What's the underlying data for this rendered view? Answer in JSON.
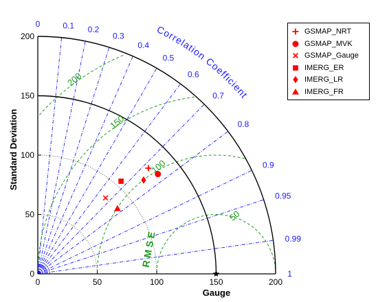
{
  "chart_data": {
    "type": "scatter",
    "subtype": "taylor-diagram",
    "xlabel": "Gauge",
    "ylabel": "Standard Deviation",
    "corr_title": "Correlation Coefficient",
    "rms_title": "R M S E",
    "std_range": [
      0,
      200
    ],
    "std_ticks": [
      0,
      50,
      100,
      150,
      200
    ],
    "corr_ticks": [
      "0",
      "0.1",
      "0.2",
      "0.3",
      "0.4",
      "0.5",
      "0.6",
      "0.7",
      "0.8",
      "0.9",
      "0.95",
      "0.99",
      "1"
    ],
    "corr_values": [
      0,
      0.1,
      0.2,
      0.3,
      0.4,
      0.5,
      0.6,
      0.7,
      0.8,
      0.9,
      0.95,
      0.99,
      1
    ],
    "rms_contours": [
      "50",
      "100",
      "150",
      "200"
    ],
    "rms_values": [
      50,
      100,
      150,
      200
    ],
    "reference": {
      "name": "Gauge",
      "std": 150,
      "corr": 1
    },
    "std_arcs": [
      100,
      150,
      200
    ],
    "series": [
      {
        "name": "GSMAP_NRT",
        "marker": "plus",
        "x": 93,
        "y": 89
      },
      {
        "name": "GSMAP_MVK",
        "marker": "circle",
        "x": 101,
        "y": 84
      },
      {
        "name": "GSMAP_Gauge",
        "marker": "x",
        "x": 57,
        "y": 64
      },
      {
        "name": "IMERG_ER",
        "marker": "square",
        "x": 70,
        "y": 78
      },
      {
        "name": "IMERG_LR",
        "marker": "diamond",
        "x": 89,
        "y": 79
      },
      {
        "name": "IMERG_FR",
        "marker": "triangle",
        "x": 67,
        "y": 55
      }
    ],
    "legend_position": "top-right",
    "grid": true,
    "colors": {
      "markers": "#ff0000",
      "correlation": "#1a1aff",
      "rmse": "#1c9c1c",
      "axes": "#000000"
    }
  }
}
